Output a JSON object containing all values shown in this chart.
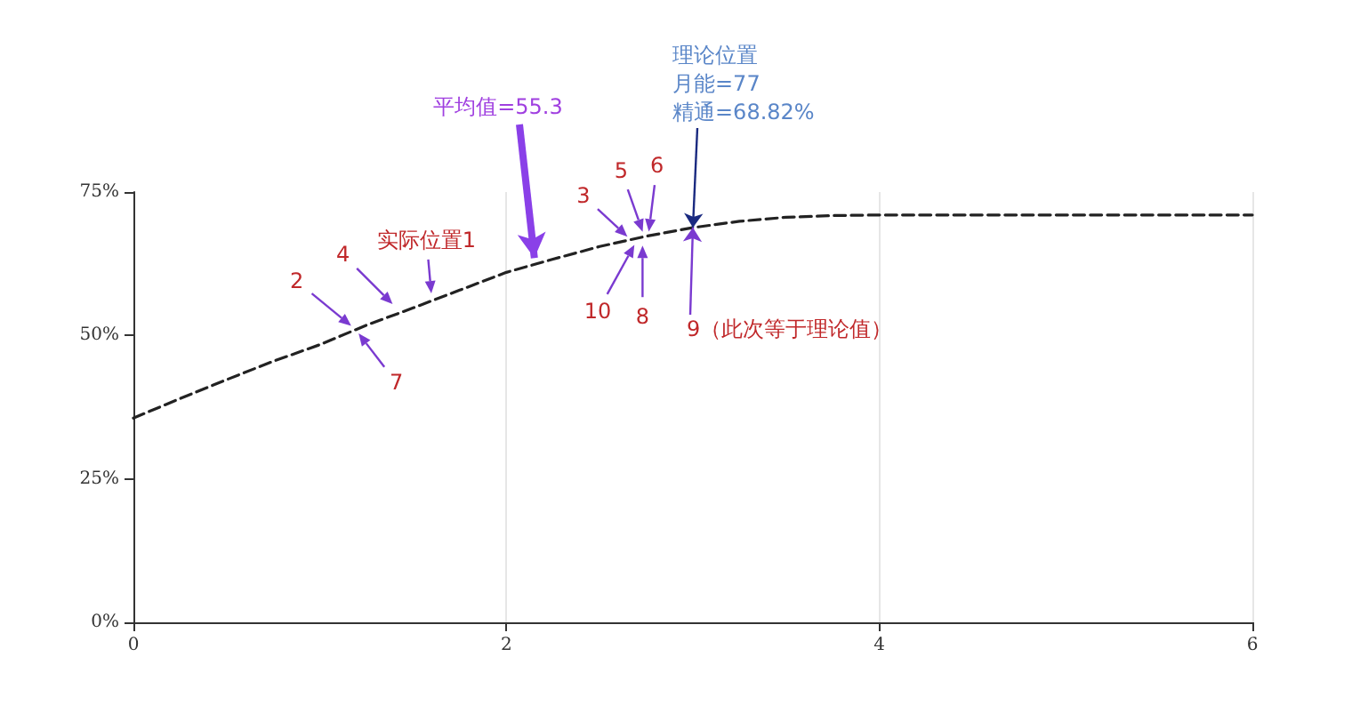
{
  "chart_data": {
    "type": "line",
    "x": [
      0,
      0.25,
      0.5,
      0.75,
      1,
      1.25,
      1.5,
      1.75,
      2,
      2.25,
      2.5,
      2.75,
      3,
      3.25,
      3.5,
      3.75,
      4,
      4.5,
      5,
      5.5,
      6
    ],
    "values": [
      35.6,
      39,
      42.3,
      45.5,
      48.4,
      51.8,
      54.8,
      57.9,
      61,
      63.3,
      65.5,
      67.3,
      68.8,
      69.9,
      70.6,
      70.9,
      71,
      71,
      71,
      71,
      71
    ],
    "color": "#222222",
    "line_style": "dashed",
    "marker": "none",
    "xlim": [
      0,
      6
    ],
    "xticks": [
      0,
      2,
      4,
      6
    ],
    "ylim": [
      0,
      75
    ],
    "yticks": [
      {
        "value": 0,
        "label": "0%"
      },
      {
        "value": 25,
        "label": "25%"
      },
      {
        "value": 50,
        "label": "50%"
      },
      {
        "value": 75,
        "label": "75%"
      }
    ],
    "grid": "x",
    "annotations": [
      {
        "text": "2",
        "x": 1.19,
        "y": 51.1
      },
      {
        "text": "7",
        "x": 1.19,
        "y": 51.1
      },
      {
        "text": "4",
        "x": 1.41,
        "y": 54.8
      },
      {
        "text": "实际位置1",
        "x": 1.6,
        "y": 56.4
      },
      {
        "text": "平均值=55.3",
        "x": 2.15,
        "y": 63.5
      },
      {
        "text": "3",
        "x": 2.67,
        "y": 66.6
      },
      {
        "text": "5",
        "x": 2.74,
        "y": 67.2
      },
      {
        "text": "6",
        "x": 2.76,
        "y": 67.2
      },
      {
        "text": "10",
        "x": 2.7,
        "y": 66.6
      },
      {
        "text": "8",
        "x": 2.73,
        "y": 66.6
      },
      "理论位置",
      "月能=77",
      {
        "text": "精通=68.82%",
        "x": 3,
        "y": 68.82
      },
      {
        "text": "9（此次等于理论值）",
        "x": 3,
        "y": 68.82
      }
    ]
  }
}
